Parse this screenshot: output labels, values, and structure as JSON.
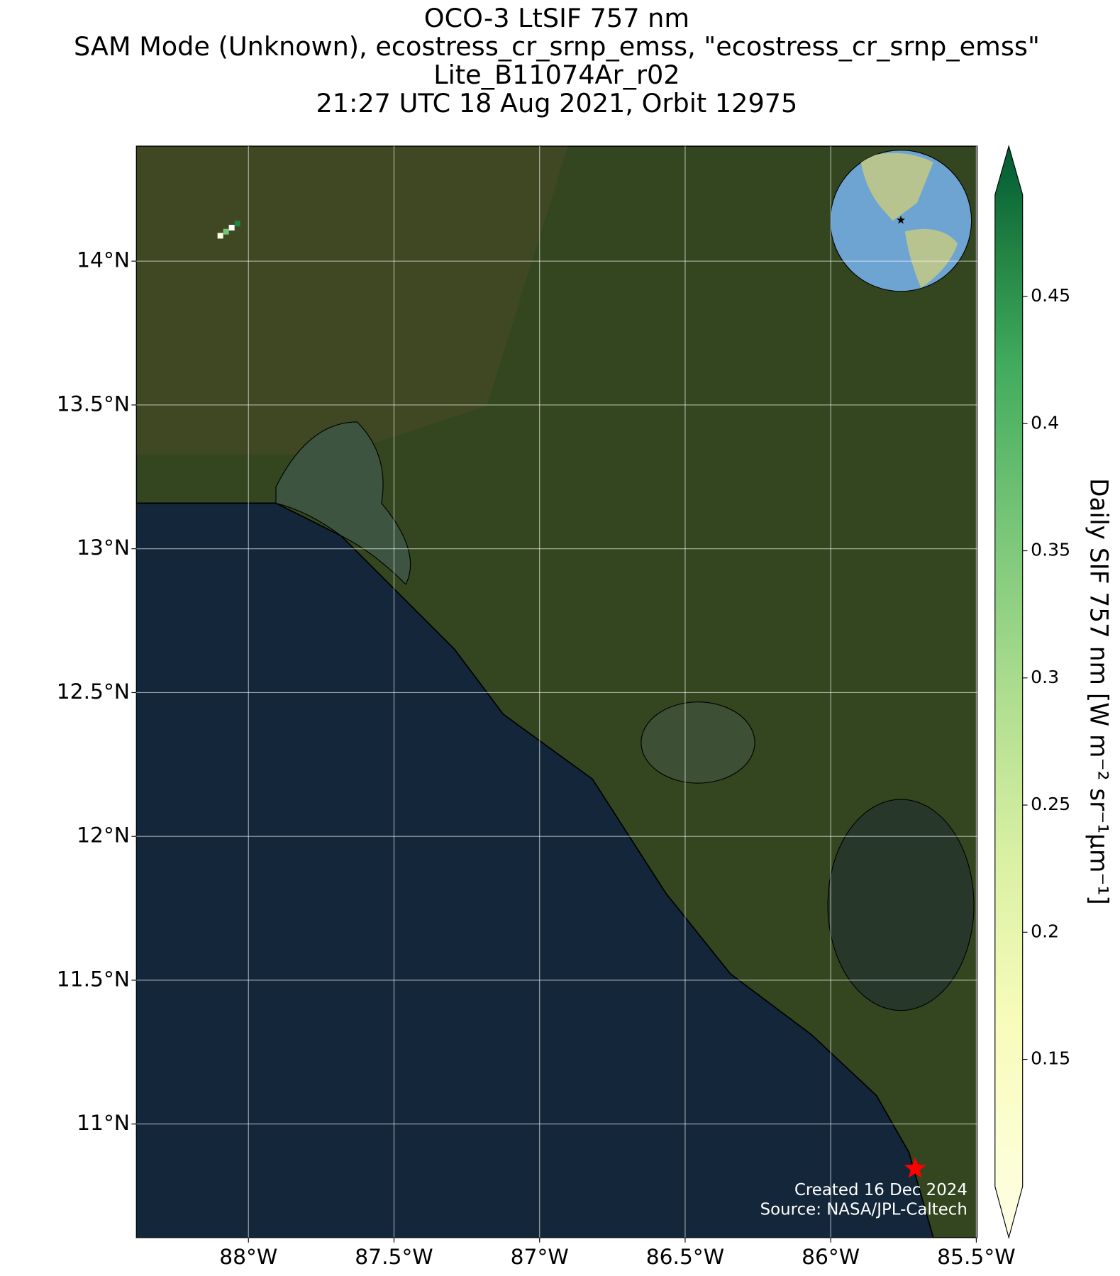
{
  "chart_data": {
    "type": "map",
    "title": [
      "OCO-3 LtSIF 757 nm",
      "SAM Mode (Unknown), ecostress_cr_srnp_emss, \"ecostress_cr_srnp_emss\"",
      "Lite_B11074Ar_r02",
      "21:27 UTC 18 Aug 2021, Orbit 12975"
    ],
    "xlim": [
      -88.385,
      -85.497
    ],
    "ylim": [
      10.605,
      14.4
    ],
    "xticks": [
      {
        "value": -88,
        "label": "88°W"
      },
      {
        "value": -87.5,
        "label": "87.5°W"
      },
      {
        "value": -87,
        "label": "87°W"
      },
      {
        "value": -86.5,
        "label": "86.5°W"
      },
      {
        "value": -86,
        "label": "86°W"
      },
      {
        "value": -85.5,
        "label": "85.5°W"
      }
    ],
    "yticks": [
      {
        "value": 14,
        "label": "14°N"
      },
      {
        "value": 13.5,
        "label": "13.5°N"
      },
      {
        "value": 13,
        "label": "13°N"
      },
      {
        "value": 12.5,
        "label": "12.5°N"
      },
      {
        "value": 12,
        "label": "12°N"
      },
      {
        "value": 11.5,
        "label": "11.5°N"
      },
      {
        "value": 11,
        "label": "11°N"
      }
    ],
    "grid": true,
    "site": {
      "lon": -85.71,
      "lat": 10.845,
      "color": "#ff0000"
    },
    "colorbar": {
      "label": "Daily SIF 757 nm [W m⁻² sr⁻¹µm⁻¹]",
      "lim": [
        0.1,
        0.49
      ],
      "ticks": [
        0.15,
        0.2,
        0.25,
        0.3,
        0.35,
        0.4,
        0.45
      ]
    },
    "annotations": [
      "Created 16 Dec 2024",
      "Source: NASA/JPL-Caltech"
    ]
  }
}
